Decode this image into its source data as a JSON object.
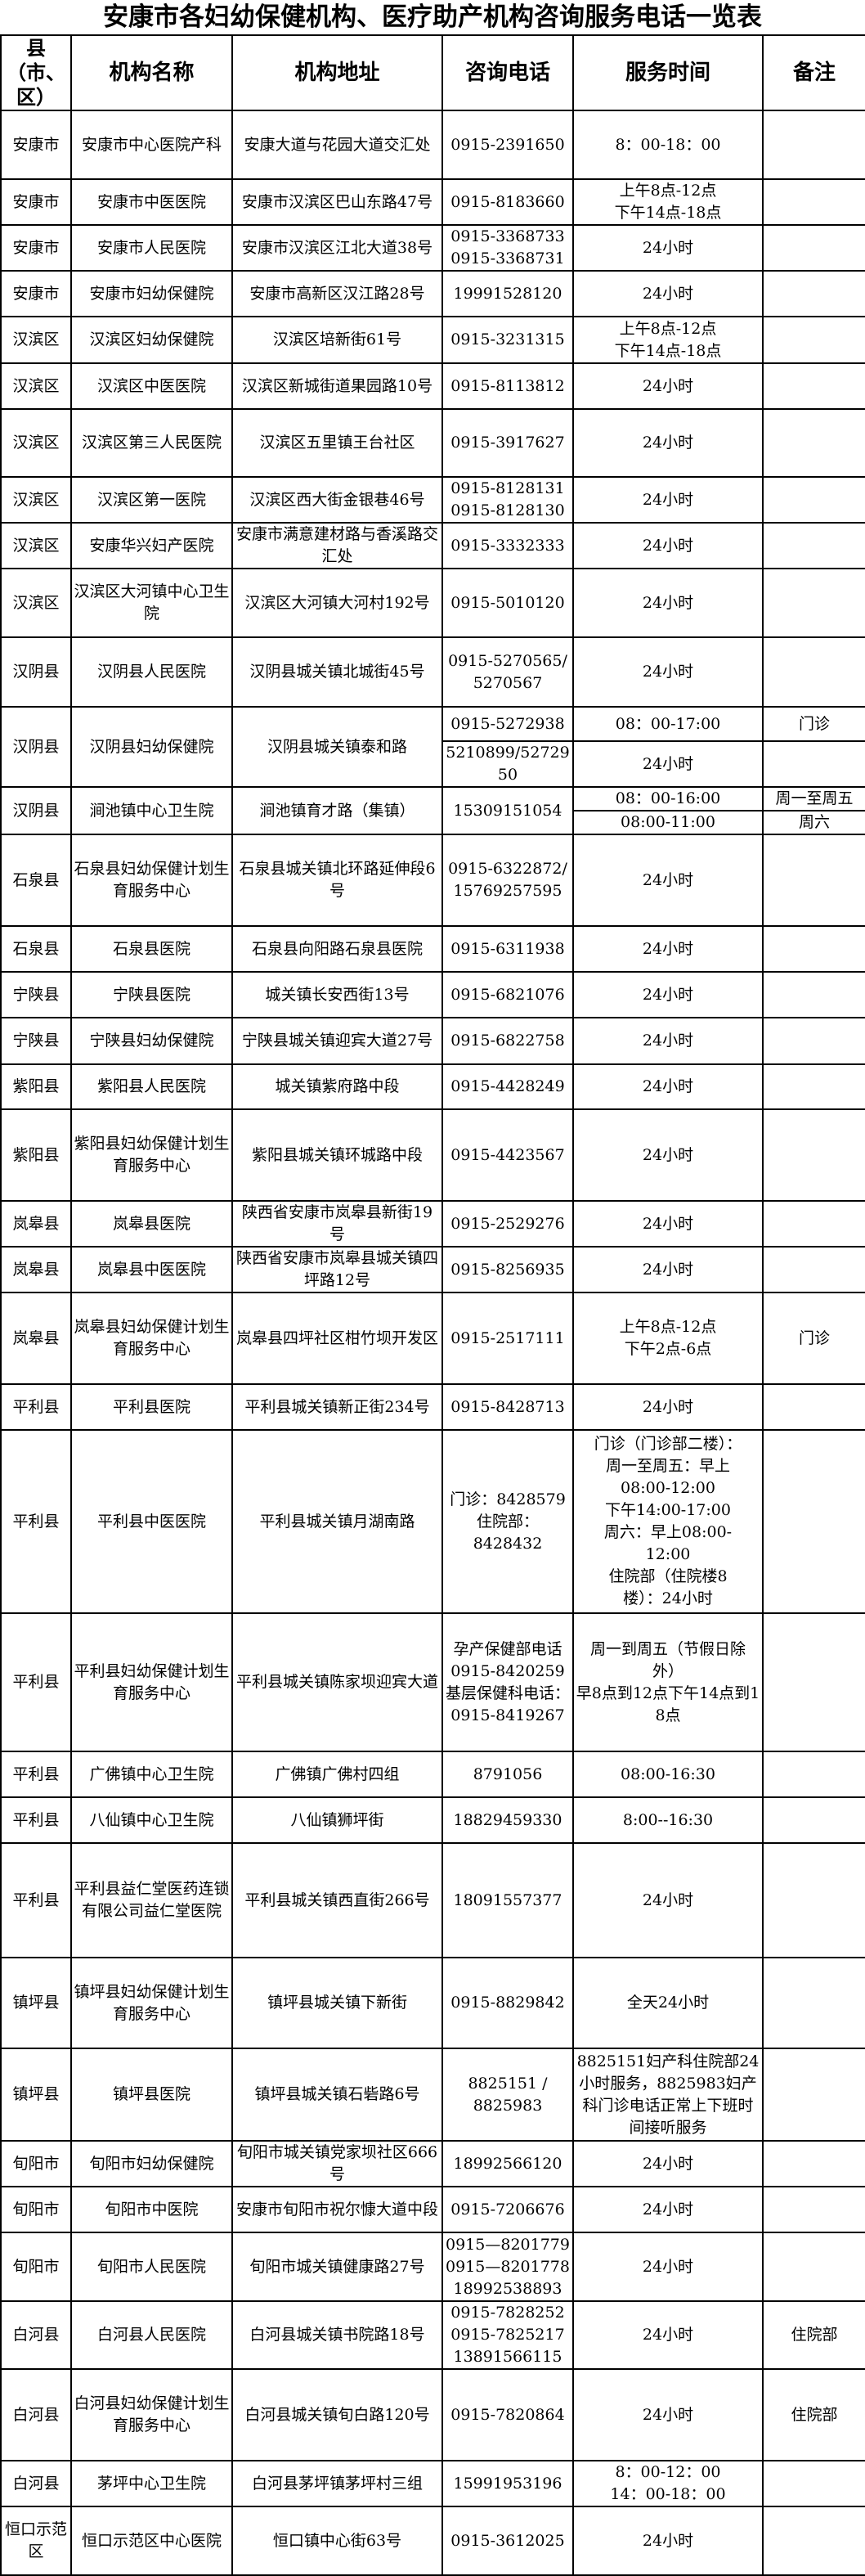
{
  "title": "安康市各妇幼保健机构、医疗助产机构咨询服务电话一览表",
  "headers": {
    "county": "县（市、区）",
    "name": "机构名称",
    "address": "机构地址",
    "phone": "咨询电话",
    "hours": "服务时间",
    "note": "备注"
  },
  "rows": [
    {
      "county": "安康市",
      "name": "安康市中心医院产科",
      "address": "安康大道与花园大道交汇处",
      "phone": "0915-2391650",
      "hours": "8：00-18：00",
      "note": ""
    },
    {
      "county": "安康市",
      "name": "安康市中医医院",
      "address": "安康市汉滨区巴山东路47号",
      "phone": "0915-8183660",
      "hours": "上午8点-12点\n下午14点-18点",
      "note": ""
    },
    {
      "county": "安康市",
      "name": "安康市人民医院",
      "address": "安康市汉滨区江北大道38号",
      "phone": "0915-3368733\n0915-3368731",
      "hours": "24小时",
      "note": ""
    },
    {
      "county": "安康市",
      "name": "安康市妇幼保健院",
      "address": "安康市高新区汉江路28号",
      "phone": "19991528120",
      "hours": "24小时",
      "note": ""
    },
    {
      "county": "汉滨区",
      "name": "汉滨区妇幼保健院",
      "address": "汉滨区培新街61号",
      "phone": "0915-3231315",
      "hours": "上午8点-12点\n下午14点-18点",
      "note": ""
    },
    {
      "county": "汉滨区",
      "name": "汉滨区中医医院",
      "address": "汉滨区新城街道果园路10号",
      "phone": "0915-8113812",
      "hours": "24小时",
      "note": ""
    },
    {
      "county": "汉滨区",
      "name": "汉滨区第三人民医院",
      "address": "汉滨区五里镇王台社区",
      "phone": "0915-3917627",
      "hours": "24小时",
      "note": ""
    },
    {
      "county": "汉滨区",
      "name": "汉滨区第一医院",
      "address": "汉滨区西大街金银巷46号",
      "phone": "0915-8128131\n0915-8128130",
      "hours": "24小时",
      "note": ""
    },
    {
      "county": "汉滨区",
      "name": "安康华兴妇产医院",
      "address": "安康市满意建材路与香溪路交汇处",
      "phone": "0915-3332333",
      "hours": "24小时",
      "note": ""
    },
    {
      "county": "汉滨区",
      "name": "汉滨区大河镇中心卫生院",
      "address": "汉滨区大河镇大河村192号",
      "phone": "0915-5010120",
      "hours": "24小时",
      "note": ""
    },
    {
      "county": "汉阴县",
      "name": "汉阴县人民医院",
      "address": "汉阴县城关镇北城街45号",
      "phone": "0915-5270565/5270567",
      "hours": "24小时",
      "note": ""
    },
    {
      "county": "汉阴县",
      "name": "汉阴县妇幼保健院",
      "address": "汉阴县城关镇泰和路",
      "slots": [
        {
          "phone": "0915-5272938",
          "hours": "08：00-17:00",
          "note": "门诊"
        },
        {
          "phone": "5210899/5272950",
          "hours": "24小时",
          "note": ""
        }
      ]
    },
    {
      "county": "汉阴县",
      "name": "涧池镇中心卫生院",
      "address": "涧池镇育才路（集镇）",
      "phone": "15309151054",
      "slots": [
        {
          "hours": "08：00-16:00",
          "note": "周一至周五"
        },
        {
          "hours": "08:00-11:00",
          "note": "周六"
        }
      ]
    },
    {
      "county": "石泉县",
      "name": "石泉县妇幼保健计划生育服务中心",
      "address": "石泉县城关镇北环路延伸段6号",
      "phone": "0915-6322872/15769257595",
      "hours": "24小时",
      "note": ""
    },
    {
      "county": "石泉县",
      "name": "石泉县医院",
      "address": "石泉县向阳路石泉县医院",
      "phone": "0915-6311938",
      "hours": "24小时",
      "note": ""
    },
    {
      "county": "宁陕县",
      "name": "宁陕县医院",
      "address": "城关镇长安西街13号",
      "phone": "0915-6821076",
      "hours": "24小时",
      "note": ""
    },
    {
      "county": "宁陕县",
      "name": "宁陕县妇幼保健院",
      "address": "宁陕县城关镇迎宾大道27号",
      "phone": "0915-6822758",
      "hours": "24小时",
      "note": ""
    },
    {
      "county": "紫阳县",
      "name": "紫阳县人民医院",
      "address": "城关镇紫府路中段",
      "phone": "0915-4428249",
      "hours": "24小时",
      "note": ""
    },
    {
      "county": "紫阳县",
      "name": "紫阳县妇幼保健计划生育服务中心",
      "address": "紫阳县城关镇环城路中段",
      "phone": "0915-4423567",
      "hours": "24小时",
      "note": ""
    },
    {
      "county": "岚皋县",
      "name": "岚皋县医院",
      "address": "陕西省安康市岚皋县新街19号",
      "phone": "0915-2529276",
      "hours": "24小时",
      "note": ""
    },
    {
      "county": "岚皋县",
      "name": "岚皋县中医医院",
      "address": "陕西省安康市岚皋县城关镇四坪路12号",
      "phone": "0915-8256935",
      "hours": "24小时",
      "note": ""
    },
    {
      "county": "岚皋县",
      "name": "岚皋县妇幼保健计划生育服务中心",
      "address": "岚皋县四坪社区柑竹坝开发区",
      "phone": "0915-2517111",
      "hours": "上午8点-12点\n下午2点-6点",
      "note": "门诊"
    },
    {
      "county": "平利县",
      "name": "平利县医院",
      "address": "平利县城关镇新正街234号",
      "phone": "0915-8428713",
      "hours": "24小时",
      "note": ""
    },
    {
      "county": "平利县",
      "name": "平利县中医医院",
      "address": "平利县城关镇月湖南路",
      "phone": "门诊：8428579\n住院部：\n8428432",
      "hours": "门诊（门诊部二楼）：\n周一至周五：早上\n08:00-12:00\n下午14:00-17:00\n周六：早上08:00-\n12:00\n住院部（住院楼8\n楼）：24小时",
      "note": ""
    },
    {
      "county": "平利县",
      "name": "平利县妇幼保健计划生育服务中心",
      "address": "平利县城关镇陈家坝迎宾大道",
      "phone": "孕产保健部电话\n0915-8420259\n基层保健科电话：\n0915-8419267",
      "hours": "周一到周五（节假日除外）\n早8点到12点下午14点到18点",
      "note": ""
    },
    {
      "county": "平利县",
      "name": "广佛镇中心卫生院",
      "address": "广佛镇广佛村四组",
      "phone": "8791056",
      "hours": "08:00-16:30",
      "note": ""
    },
    {
      "county": "平利县",
      "name": "八仙镇中心卫生院",
      "address": "八仙镇狮坪街",
      "phone": "18829459330",
      "hours": "8:00--16:30",
      "note": ""
    },
    {
      "county": "平利县",
      "name": "平利县益仁堂医药连锁有限公司益仁堂医院",
      "address": "平利县城关镇西直街266号",
      "phone": "18091557377",
      "hours": "24小时",
      "note": ""
    },
    {
      "county": "镇坪县",
      "name": "镇坪县妇幼保健计划生育服务中心",
      "address": "镇坪县城关镇下新街",
      "phone": "0915-8829842",
      "hours": "全天24小时",
      "note": ""
    },
    {
      "county": "镇坪县",
      "name": "镇坪县医院",
      "address": "镇坪县城关镇石砦路6号",
      "phone": "8825151 /\n8825983",
      "hours": "8825151妇产科住院部24小时服务，8825983妇产科门诊电话正常上下班时间接听服务",
      "note": ""
    },
    {
      "county": "旬阳市",
      "name": "旬阳市妇幼保健院",
      "address": "旬阳市城关镇党家坝社区666号",
      "phone": "18992566120",
      "hours": "24小时",
      "note": ""
    },
    {
      "county": "旬阳市",
      "name": "旬阳市中医院",
      "address": "安康市旬阳市祝尔慷大道中段",
      "phone": "0915-7206676",
      "hours": "24小时",
      "note": ""
    },
    {
      "county": "旬阳市",
      "name": "旬阳市人民医院",
      "address": "旬阳市城关镇健康路27号",
      "phone": "0915—8201779\n0915—8201778\n18992538893",
      "hours": "24小时",
      "note": ""
    },
    {
      "county": "白河县",
      "name": "白河县人民医院",
      "address": "白河县城关镇书院路18号",
      "phone": "0915-7828252\n0915-7825217\n13891566115",
      "hours": "24小时",
      "note": "住院部"
    },
    {
      "county": "白河县",
      "name": "白河县妇幼保健计划生育服务中心",
      "address": "白河县城关镇旬白路120号",
      "phone": "0915-7820864",
      "hours": "24小时",
      "note": "住院部"
    },
    {
      "county": "白河县",
      "name": "茅坪中心卫生院",
      "address": "白河县茅坪镇茅坪村三组",
      "phone": "15991953196",
      "hours": "8：00-12：00\n14：00-18：00",
      "note": ""
    },
    {
      "county": "恒口示范区",
      "name": "恒口示范区中心医院",
      "address": "恒口镇中心街63号",
      "phone": "0915-3612025",
      "hours": "24小时",
      "note": ""
    }
  ]
}
